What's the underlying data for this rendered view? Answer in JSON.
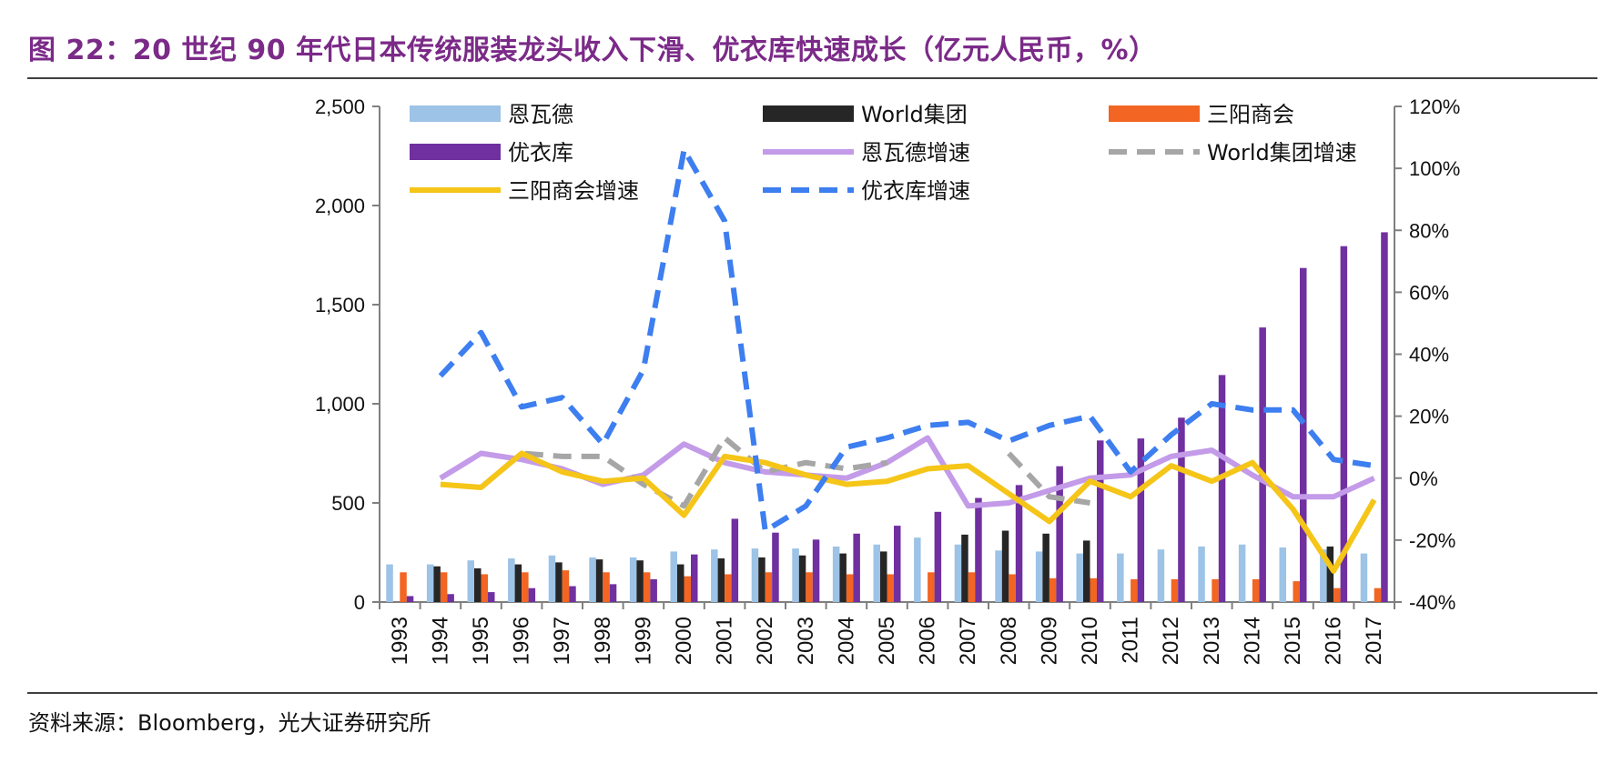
{
  "title": "图 22：20 世纪 90 年代日本传统服装龙头收入下滑、优衣库快速成长（亿元人民币，%）",
  "source": "资料来源：Bloomberg，光大证券研究所",
  "chart_data": {
    "type": "bar+line",
    "categories": [
      "1993",
      "1994",
      "1995",
      "1996",
      "1997",
      "1998",
      "1999",
      "2000",
      "2001",
      "2002",
      "2003",
      "2004",
      "2005",
      "2006",
      "2007",
      "2008",
      "2009",
      "2010",
      "2011",
      "2012",
      "2013",
      "2014",
      "2015",
      "2016",
      "2017"
    ],
    "left_axis": {
      "min": 0,
      "max": 2500,
      "ticks": [
        0,
        500,
        1000,
        1500,
        2000,
        2500
      ],
      "tick_labels": [
        "0",
        "500",
        "1,000",
        "1,500",
        "2,000",
        "2,500"
      ]
    },
    "right_axis": {
      "min": -40,
      "max": 120,
      "ticks": [
        -40,
        -20,
        0,
        20,
        40,
        60,
        80,
        100,
        120
      ],
      "tick_labels": [
        "-40%",
        "-20%",
        "0%",
        "20%",
        "40%",
        "60%",
        "80%",
        "100%",
        "120%"
      ]
    },
    "bar_series": [
      {
        "name": "恩瓦德",
        "color": "#9dc3e6",
        "values": [
          190,
          190,
          210,
          220,
          235,
          225,
          225,
          255,
          265,
          270,
          270,
          280,
          290,
          325,
          290,
          260,
          255,
          245,
          245,
          265,
          280,
          290,
          275,
          265,
          245
        ]
      },
      {
        "name": "World集团",
        "color": "#262626",
        "values": [
          null,
          180,
          170,
          190,
          200,
          215,
          210,
          190,
          220,
          225,
          235,
          245,
          255,
          null,
          340,
          360,
          345,
          310,
          null,
          null,
          null,
          null,
          null,
          280,
          null
        ]
      },
      {
        "name": "三阳商会",
        "color": "#f26522",
        "values": [
          150,
          150,
          140,
          150,
          160,
          150,
          150,
          130,
          140,
          150,
          150,
          140,
          140,
          150,
          150,
          140,
          120,
          120,
          115,
          115,
          115,
          115,
          105,
          70,
          70
        ]
      },
      {
        "name": "优衣库",
        "color": "#7030a0",
        "values": [
          30,
          40,
          50,
          70,
          80,
          90,
          115,
          240,
          420,
          350,
          315,
          345,
          385,
          455,
          525,
          590,
          685,
          815,
          825,
          930,
          1145,
          1385,
          1685,
          1795,
          1865
        ]
      }
    ],
    "line_series": [
      {
        "name": "恩瓦德增速",
        "color": "#c39be8",
        "dash": "solid",
        "values": [
          null,
          0,
          8,
          6,
          3,
          -2,
          1,
          11,
          5,
          2,
          1,
          0,
          5,
          13,
          -9,
          -8,
          -4,
          0,
          1,
          7,
          9,
          1,
          -6,
          -6,
          0
        ]
      },
      {
        "name": "World集团增速",
        "color": "#a6a6a6",
        "dash": "dash",
        "values": [
          null,
          null,
          -3,
          8,
          7,
          7,
          -2,
          -9,
          13,
          2,
          5,
          3,
          5,
          null,
          null,
          8,
          -6,
          -8,
          null,
          null,
          null,
          null,
          null,
          null,
          null
        ]
      },
      {
        "name": "三阳商会增速",
        "color": "#f5c518",
        "dash": "solid",
        "values": [
          null,
          -2,
          -3,
          8,
          2,
          -1,
          0,
          -12,
          7,
          5,
          1,
          -2,
          -1,
          3,
          4,
          -5,
          -14,
          -1,
          -6,
          4,
          -1,
          5,
          -10,
          -30,
          -7
        ]
      },
      {
        "name": "优衣库增速",
        "color": "#3d7ef0",
        "dash": "dash",
        "values": [
          null,
          33,
          47,
          23,
          26,
          11,
          35,
          106,
          83,
          -17,
          -9,
          10,
          13,
          17,
          18,
          12,
          17,
          20,
          2,
          14,
          24,
          22,
          22,
          6,
          4
        ]
      }
    ],
    "legend": [
      [
        "恩瓦德",
        "World集团",
        "三阳商会"
      ],
      [
        "优衣库",
        "恩瓦德增速",
        "World集团增速"
      ],
      [
        "三阳商会增速",
        "优衣库增速"
      ]
    ]
  }
}
